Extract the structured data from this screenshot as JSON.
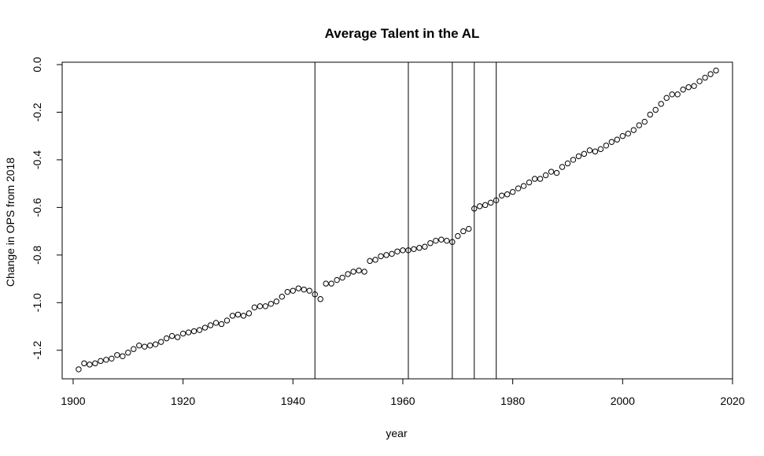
{
  "chart_data": {
    "type": "scatter",
    "title": "Average Talent in the AL",
    "xlabel": "year",
    "ylabel": "Change in OPS from 2018",
    "xlim": [
      1898,
      2020
    ],
    "ylim": [
      -1.32,
      0.01
    ],
    "x_ticks": [
      1900,
      1920,
      1940,
      1960,
      1980,
      2000,
      2020
    ],
    "y_ticks": [
      0.0,
      -0.2,
      -0.4,
      -0.6,
      -0.8,
      -1.0,
      -1.2
    ],
    "x_tick_labels": [
      "1900",
      "1920",
      "1940",
      "1960",
      "1980",
      "2000",
      "2020"
    ],
    "y_tick_labels": [
      "0.0",
      "-0.2",
      "-0.4",
      "-0.6",
      "-0.8",
      "-1.0",
      "-1.2"
    ],
    "vertical_lines": [
      1944,
      1961,
      1969,
      1973,
      1977
    ],
    "grid": false,
    "legend": "none",
    "marker": "open-circle",
    "x": [
      1901,
      1902,
      1903,
      1904,
      1905,
      1906,
      1907,
      1908,
      1909,
      1910,
      1911,
      1912,
      1913,
      1914,
      1915,
      1916,
      1917,
      1918,
      1919,
      1920,
      1921,
      1922,
      1923,
      1924,
      1925,
      1926,
      1927,
      1928,
      1929,
      1930,
      1931,
      1932,
      1933,
      1934,
      1935,
      1936,
      1937,
      1938,
      1939,
      1940,
      1941,
      1942,
      1943,
      1944,
      1945,
      1946,
      1947,
      1948,
      1949,
      1950,
      1951,
      1952,
      1953,
      1954,
      1955,
      1956,
      1957,
      1958,
      1959,
      1960,
      1961,
      1962,
      1963,
      1964,
      1965,
      1966,
      1967,
      1968,
      1969,
      1970,
      1971,
      1972,
      1973,
      1974,
      1975,
      1976,
      1977,
      1978,
      1979,
      1980,
      1981,
      1982,
      1983,
      1984,
      1985,
      1986,
      1987,
      1988,
      1989,
      1990,
      1991,
      1992,
      1993,
      1994,
      1995,
      1996,
      1997,
      1998,
      1999,
      2000,
      2001,
      2002,
      2003,
      2004,
      2005,
      2006,
      2007,
      2008,
      2009,
      2010,
      2011,
      2012,
      2013,
      2014,
      2015,
      2016,
      2017
    ],
    "y": [
      -1.28,
      -1.255,
      -1.26,
      -1.255,
      -1.245,
      -1.24,
      -1.235,
      -1.22,
      -1.225,
      -1.21,
      -1.195,
      -1.18,
      -1.185,
      -1.18,
      -1.175,
      -1.165,
      -1.15,
      -1.14,
      -1.145,
      -1.13,
      -1.125,
      -1.12,
      -1.115,
      -1.105,
      -1.095,
      -1.085,
      -1.09,
      -1.075,
      -1.055,
      -1.05,
      -1.055,
      -1.045,
      -1.02,
      -1.015,
      -1.015,
      -1.005,
      -0.995,
      -0.975,
      -0.955,
      -0.95,
      -0.94,
      -0.945,
      -0.95,
      -0.965,
      -0.985,
      -0.92,
      -0.92,
      -0.905,
      -0.895,
      -0.88,
      -0.87,
      -0.865,
      -0.87,
      -0.825,
      -0.82,
      -0.805,
      -0.8,
      -0.795,
      -0.785,
      -0.78,
      -0.78,
      -0.775,
      -0.77,
      -0.765,
      -0.75,
      -0.74,
      -0.735,
      -0.74,
      -0.745,
      -0.72,
      -0.7,
      -0.69,
      -0.605,
      -0.595,
      -0.59,
      -0.58,
      -0.57,
      -0.55,
      -0.545,
      -0.535,
      -0.52,
      -0.51,
      -0.495,
      -0.48,
      -0.48,
      -0.465,
      -0.45,
      -0.455,
      -0.43,
      -0.415,
      -0.4,
      -0.385,
      -0.375,
      -0.36,
      -0.365,
      -0.355,
      -0.34,
      -0.325,
      -0.315,
      -0.3,
      -0.29,
      -0.275,
      -0.255,
      -0.24,
      -0.21,
      -0.19,
      -0.165,
      -0.14,
      -0.125,
      -0.125,
      -0.105,
      -0.095,
      -0.09,
      -0.07,
      -0.055,
      -0.04,
      -0.025
    ]
  }
}
